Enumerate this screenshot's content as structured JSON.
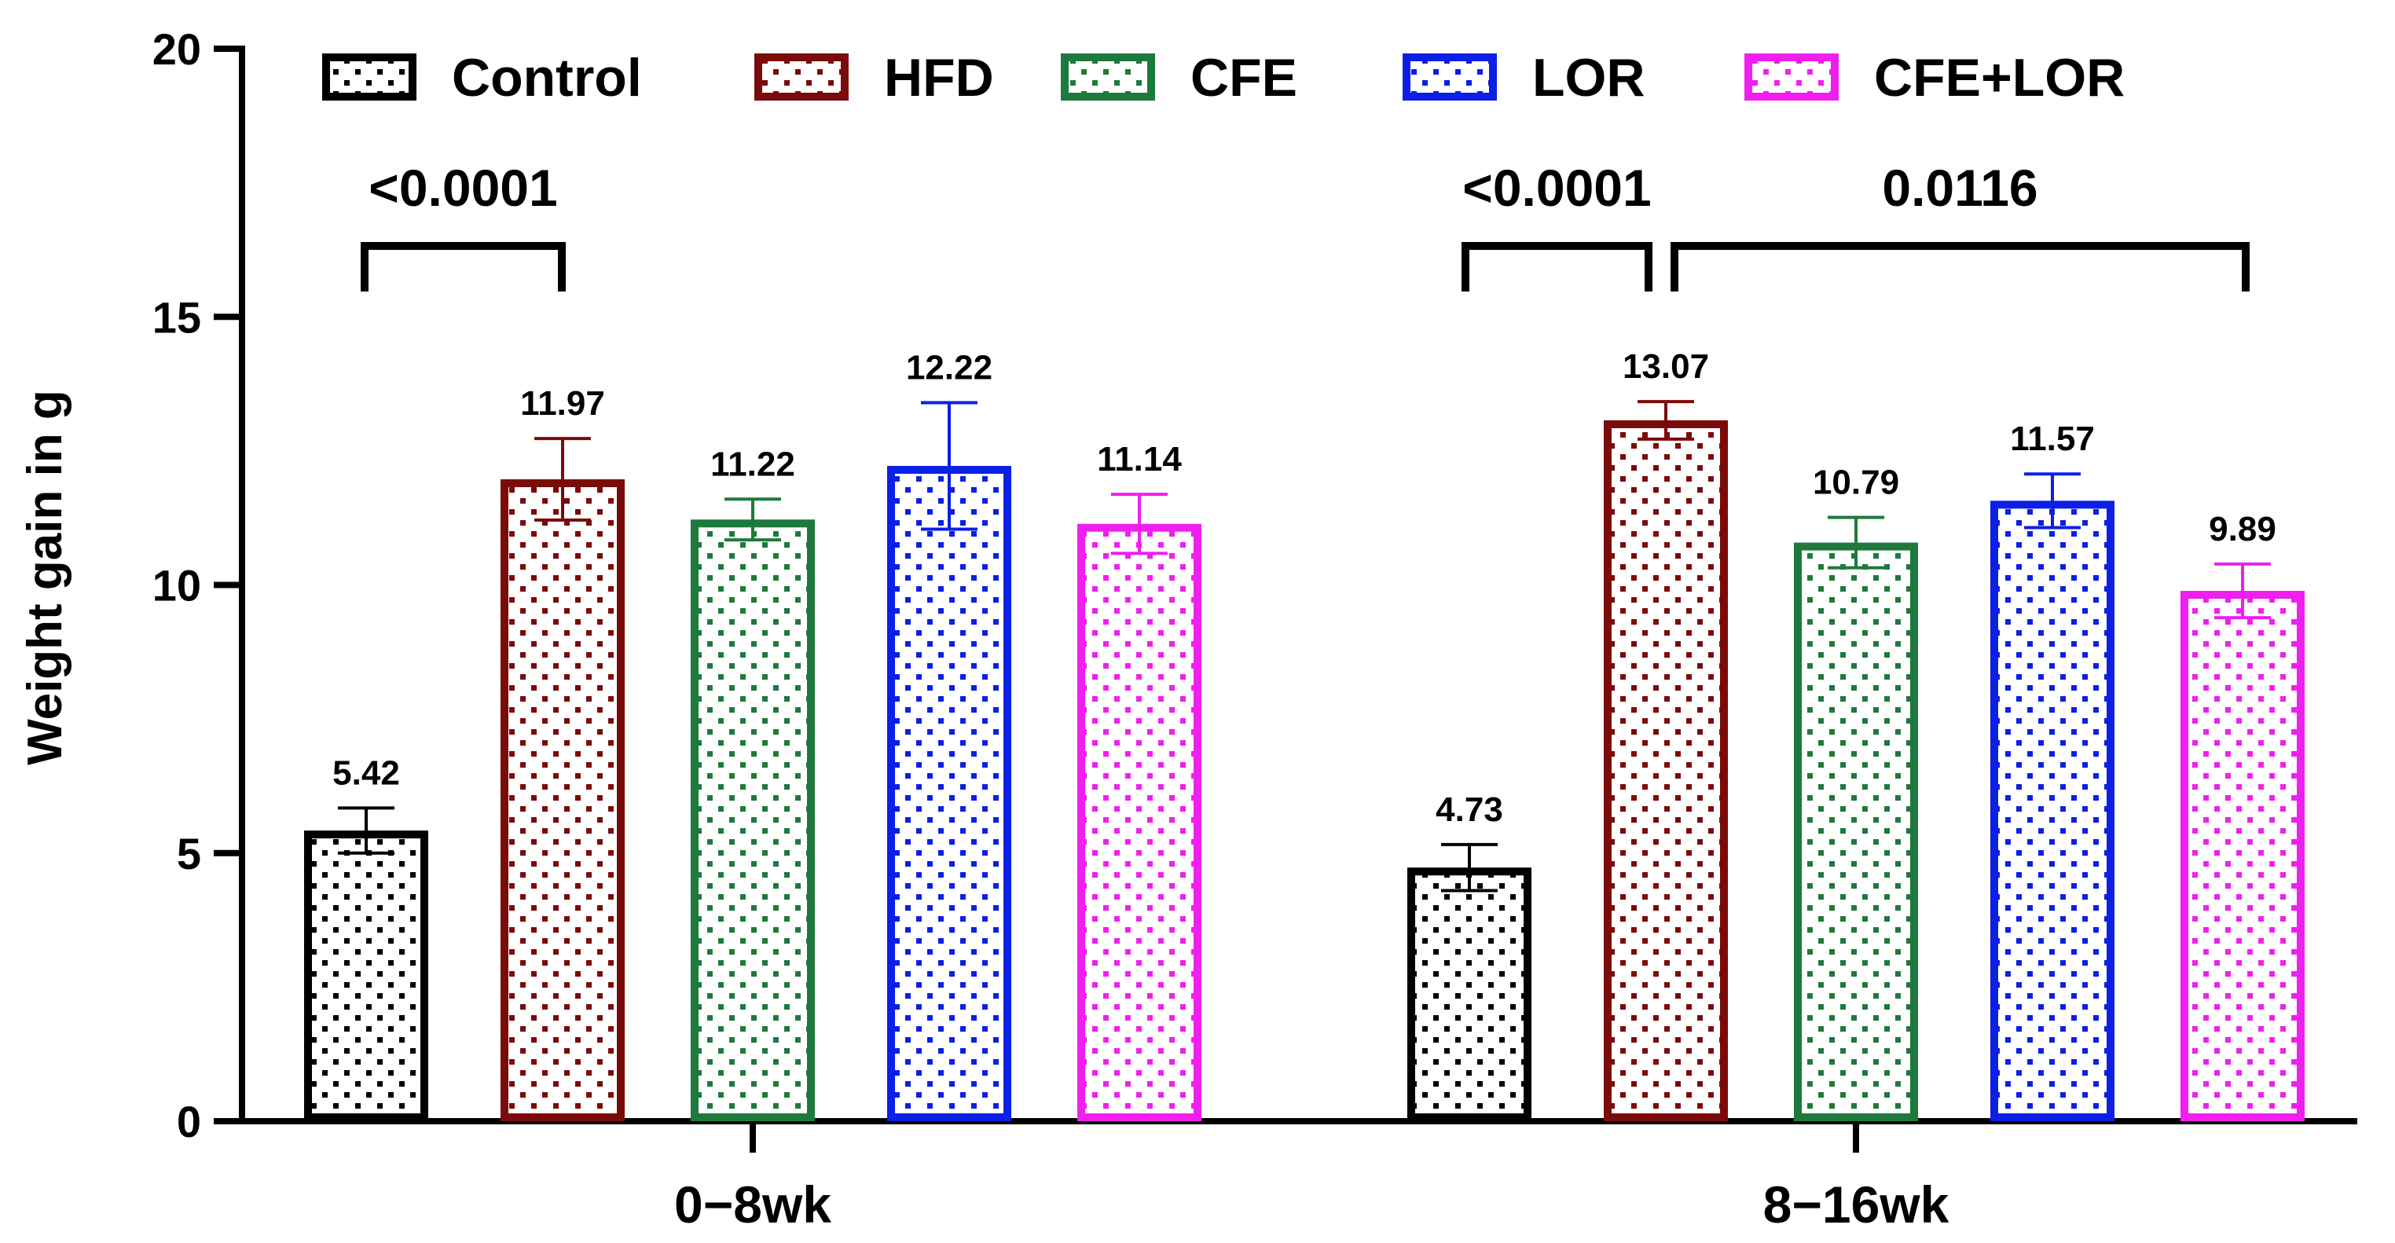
{
  "chart_data": {
    "type": "bar",
    "title": "",
    "xlabel": "",
    "ylabel": "Weight gain in g",
    "ylim": [
      0,
      20
    ],
    "yticks": [
      "0",
      "5",
      "10",
      "15",
      "20"
    ],
    "categories": [
      "0−8wk",
      "8−16wk"
    ],
    "legend_position": "top",
    "series": [
      {
        "name": "Control",
        "color": "#000000",
        "values": [
          5.42,
          4.73
        ],
        "value_labels": [
          "5.42",
          "4.73"
        ],
        "errors": [
          0.42,
          0.43
        ]
      },
      {
        "name": "HFD",
        "color": "#7b0a0a",
        "values": [
          11.97,
          13.07
        ],
        "value_labels": [
          "11.97",
          "13.07"
        ],
        "errors": [
          0.76,
          0.35
        ]
      },
      {
        "name": "CFE",
        "color": "#1e7a3c",
        "values": [
          11.22,
          10.79
        ],
        "value_labels": [
          "11.22",
          "10.79"
        ],
        "errors": [
          0.38,
          0.47
        ]
      },
      {
        "name": "LOR",
        "color": "#0b1fe6",
        "values": [
          12.22,
          11.57
        ],
        "value_labels": [
          "12.22",
          "11.57"
        ],
        "errors": [
          1.18,
          0.5
        ]
      },
      {
        "name": "CFE+LOR",
        "color": "#f01ff0",
        "values": [
          11.14,
          9.89
        ],
        "value_labels": [
          "11.14",
          "9.89"
        ],
        "errors": [
          0.55,
          0.5
        ]
      }
    ],
    "comparisons": [
      {
        "group": 0,
        "from": "Control",
        "to": "HFD",
        "label": "<0.0001"
      },
      {
        "group": 1,
        "from": "Control",
        "to": "HFD",
        "label": "<0.0001"
      },
      {
        "group": 1,
        "from": "HFD",
        "to": "CFE+LOR",
        "label": "0.0116"
      }
    ]
  }
}
